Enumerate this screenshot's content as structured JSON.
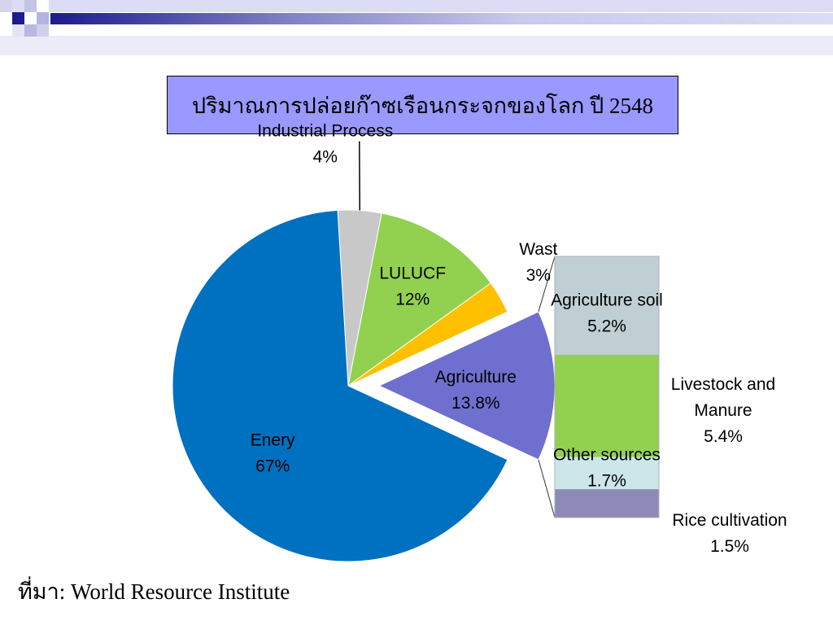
{
  "title": "ปริมาณการปล่อยก๊าซเรือนกระจกของโลก ปี 2548",
  "source": "ที่มา: World Resource Institute",
  "colors": {
    "title_bg": "#9999ff",
    "energy": "#0070c0",
    "industrial": "#c8c8c8",
    "lulucf": "#92d050",
    "waste": "#ffc000",
    "agriculture": "#6f6fcf",
    "ag_soil": "#bfcfd3",
    "livestock": "#92d050",
    "other": "#cde6ea",
    "rice": "#8e8ab8"
  },
  "chart_data": [
    {
      "type": "pie",
      "slices": [
        {
          "name": "Industrial Process",
          "label": "4%",
          "value": 4,
          "color": "#c8c8c8"
        },
        {
          "name": "LULUCF",
          "label": "12%",
          "value": 12,
          "color": "#92d050"
        },
        {
          "name": "Wast",
          "label": "3%",
          "value": 3,
          "color": "#ffc000"
        },
        {
          "name": "Agriculture",
          "label": "13.8%",
          "value": 13.8,
          "color": "#6f6fcf",
          "exploded": true
        },
        {
          "name": "Enery",
          "label": "67%",
          "value": 67,
          "color": "#0070c0"
        }
      ]
    },
    {
      "type": "bar",
      "stacked": true,
      "categories": [
        "Agriculture"
      ],
      "series": [
        {
          "name": "Agriculture soil",
          "label": "5.2%",
          "value": 5.2,
          "color": "#bfcfd3"
        },
        {
          "name": "Livestock and Manure",
          "label": "5.4%",
          "value": 5.4,
          "color": "#92d050"
        },
        {
          "name": "Other sources",
          "label": "1.7%",
          "value": 1.7,
          "color": "#cde6ea"
        },
        {
          "name": "Rice cultivation",
          "label": "1.5%",
          "value": 1.5,
          "color": "#8e8ab8"
        }
      ]
    }
  ]
}
